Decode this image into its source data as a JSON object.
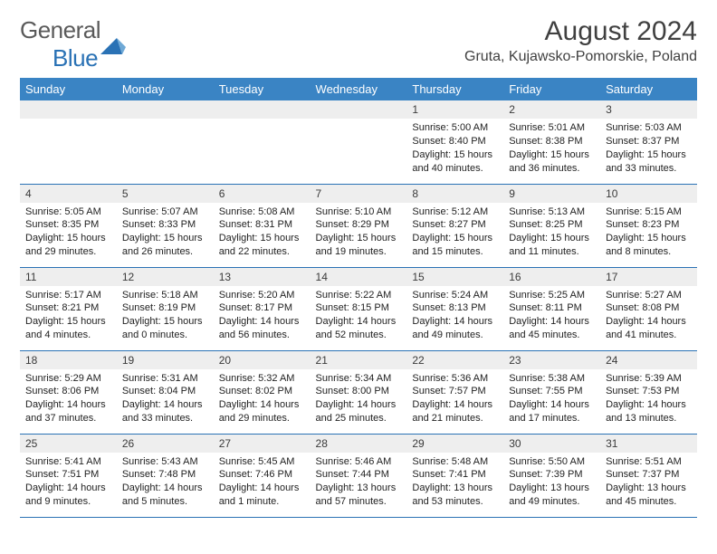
{
  "brand": {
    "name_a": "General",
    "name_b": "Blue"
  },
  "title": "August 2024",
  "location": "Gruta, Kujawsko-Pomorskie, Poland",
  "colors": {
    "header_bg": "#3a84c4",
    "rule": "#2a72b5",
    "daynum_bg": "#eeeeee",
    "text": "#222222",
    "title_text": "#404040"
  },
  "weekdays": [
    "Sunday",
    "Monday",
    "Tuesday",
    "Wednesday",
    "Thursday",
    "Friday",
    "Saturday"
  ],
  "weeks": [
    [
      null,
      null,
      null,
      null,
      {
        "n": "1",
        "sr": "5:00 AM",
        "ss": "8:40 PM",
        "dl": "15 hours and 40 minutes."
      },
      {
        "n": "2",
        "sr": "5:01 AM",
        "ss": "8:38 PM",
        "dl": "15 hours and 36 minutes."
      },
      {
        "n": "3",
        "sr": "5:03 AM",
        "ss": "8:37 PM",
        "dl": "15 hours and 33 minutes."
      }
    ],
    [
      {
        "n": "4",
        "sr": "5:05 AM",
        "ss": "8:35 PM",
        "dl": "15 hours and 29 minutes."
      },
      {
        "n": "5",
        "sr": "5:07 AM",
        "ss": "8:33 PM",
        "dl": "15 hours and 26 minutes."
      },
      {
        "n": "6",
        "sr": "5:08 AM",
        "ss": "8:31 PM",
        "dl": "15 hours and 22 minutes."
      },
      {
        "n": "7",
        "sr": "5:10 AM",
        "ss": "8:29 PM",
        "dl": "15 hours and 19 minutes."
      },
      {
        "n": "8",
        "sr": "5:12 AM",
        "ss": "8:27 PM",
        "dl": "15 hours and 15 minutes."
      },
      {
        "n": "9",
        "sr": "5:13 AM",
        "ss": "8:25 PM",
        "dl": "15 hours and 11 minutes."
      },
      {
        "n": "10",
        "sr": "5:15 AM",
        "ss": "8:23 PM",
        "dl": "15 hours and 8 minutes."
      }
    ],
    [
      {
        "n": "11",
        "sr": "5:17 AM",
        "ss": "8:21 PM",
        "dl": "15 hours and 4 minutes."
      },
      {
        "n": "12",
        "sr": "5:18 AM",
        "ss": "8:19 PM",
        "dl": "15 hours and 0 minutes."
      },
      {
        "n": "13",
        "sr": "5:20 AM",
        "ss": "8:17 PM",
        "dl": "14 hours and 56 minutes."
      },
      {
        "n": "14",
        "sr": "5:22 AM",
        "ss": "8:15 PM",
        "dl": "14 hours and 52 minutes."
      },
      {
        "n": "15",
        "sr": "5:24 AM",
        "ss": "8:13 PM",
        "dl": "14 hours and 49 minutes."
      },
      {
        "n": "16",
        "sr": "5:25 AM",
        "ss": "8:11 PM",
        "dl": "14 hours and 45 minutes."
      },
      {
        "n": "17",
        "sr": "5:27 AM",
        "ss": "8:08 PM",
        "dl": "14 hours and 41 minutes."
      }
    ],
    [
      {
        "n": "18",
        "sr": "5:29 AM",
        "ss": "8:06 PM",
        "dl": "14 hours and 37 minutes."
      },
      {
        "n": "19",
        "sr": "5:31 AM",
        "ss": "8:04 PM",
        "dl": "14 hours and 33 minutes."
      },
      {
        "n": "20",
        "sr": "5:32 AM",
        "ss": "8:02 PM",
        "dl": "14 hours and 29 minutes."
      },
      {
        "n": "21",
        "sr": "5:34 AM",
        "ss": "8:00 PM",
        "dl": "14 hours and 25 minutes."
      },
      {
        "n": "22",
        "sr": "5:36 AM",
        "ss": "7:57 PM",
        "dl": "14 hours and 21 minutes."
      },
      {
        "n": "23",
        "sr": "5:38 AM",
        "ss": "7:55 PM",
        "dl": "14 hours and 17 minutes."
      },
      {
        "n": "24",
        "sr": "5:39 AM",
        "ss": "7:53 PM",
        "dl": "14 hours and 13 minutes."
      }
    ],
    [
      {
        "n": "25",
        "sr": "5:41 AM",
        "ss": "7:51 PM",
        "dl": "14 hours and 9 minutes."
      },
      {
        "n": "26",
        "sr": "5:43 AM",
        "ss": "7:48 PM",
        "dl": "14 hours and 5 minutes."
      },
      {
        "n": "27",
        "sr": "5:45 AM",
        "ss": "7:46 PM",
        "dl": "14 hours and 1 minute."
      },
      {
        "n": "28",
        "sr": "5:46 AM",
        "ss": "7:44 PM",
        "dl": "13 hours and 57 minutes."
      },
      {
        "n": "29",
        "sr": "5:48 AM",
        "ss": "7:41 PM",
        "dl": "13 hours and 53 minutes."
      },
      {
        "n": "30",
        "sr": "5:50 AM",
        "ss": "7:39 PM",
        "dl": "13 hours and 49 minutes."
      },
      {
        "n": "31",
        "sr": "5:51 AM",
        "ss": "7:37 PM",
        "dl": "13 hours and 45 minutes."
      }
    ]
  ],
  "labels": {
    "sunrise": "Sunrise:",
    "sunset": "Sunset:",
    "daylight": "Daylight:"
  }
}
